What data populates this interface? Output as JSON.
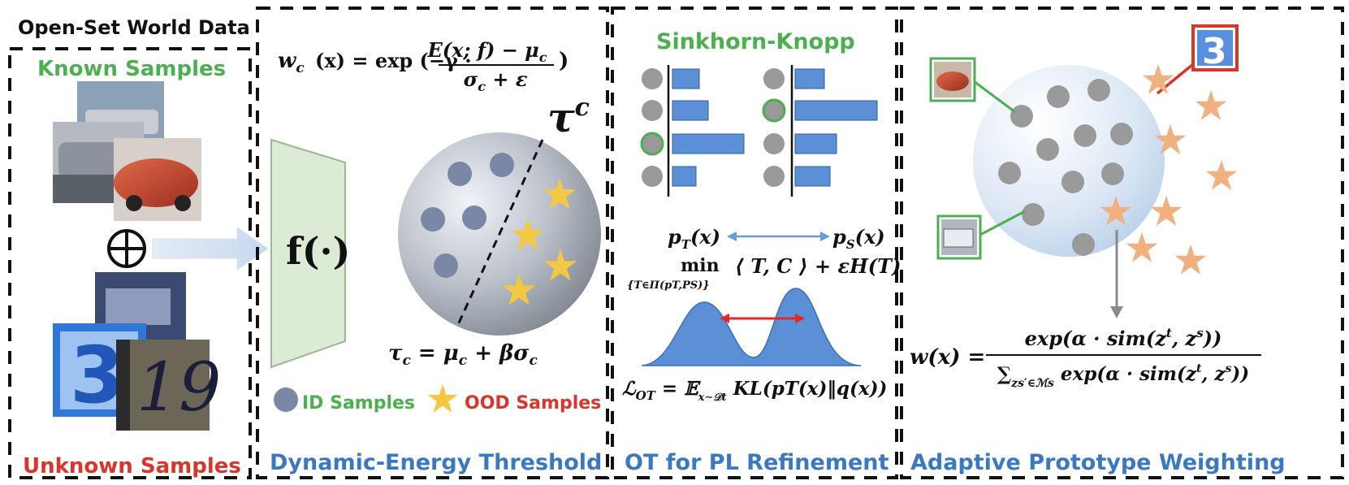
{
  "panels": {
    "data": {
      "header": "Open-Set World Data",
      "known_label": "Known Samples",
      "unknown_label": "Unknown Samples",
      "combine_symbol": "⊕",
      "digit_a": "3",
      "digit_b": "19"
    },
    "threshold": {
      "weight_formula_left": "w",
      "weight_formula_sub": "c",
      "weight_formula_mid": "(x) = exp (−γ ·",
      "weight_formula_num": "E(x; f) − μ",
      "weight_formula_num_sub": "c",
      "weight_formula_den": "σ",
      "weight_formula_den_sub": "c",
      "weight_formula_den_rest": " + ε",
      "weight_formula_close": ")",
      "extractor_label": "f(·)",
      "tau_sup_base": "τ",
      "tau_sup": "c",
      "threshold_formula": "τc = μc + βσc",
      "legend_id": "ID Samples",
      "legend_ood": "OOD Samples",
      "title": "Dynamic-Energy Threshold"
    },
    "ot": {
      "header": "Sinkhorn-Knopp",
      "pt": "pT(x)",
      "ps": "pS(x)",
      "min_word": "min",
      "min_sub": "{T∈Π(pT,PS)}",
      "min_rest": "⟨ T, C ⟩ + εH(T)",
      "loss": "ℒOT = 𝔼x∼𝒟t KL(pT(x)‖q(x))",
      "title": "OT for PL Refinement",
      "bars_left": [
        0.38,
        0.5,
        1.0,
        0.33
      ],
      "bars_right": [
        0.38,
        1.05,
        0.53,
        0.45
      ]
    },
    "prototype": {
      "digit": "3",
      "formula_lhs": "w(x) =",
      "formula_num": "exp(α · sim(zt, zs))",
      "formula_den": "∑z s′ ∈ℳs exp(α · sim(zt, zs))",
      "title": "Adaptive Prototype Weighting"
    }
  },
  "colors": {
    "green": "#4caf50",
    "red": "#d9352b",
    "blue_title": "#3a78c2",
    "bar_blue": "#5b8fd6",
    "id_dot": "#7a88a6",
    "star": "#f5c842",
    "star_orange": "#f0b080",
    "proto_dot": "#9a9a9a"
  }
}
